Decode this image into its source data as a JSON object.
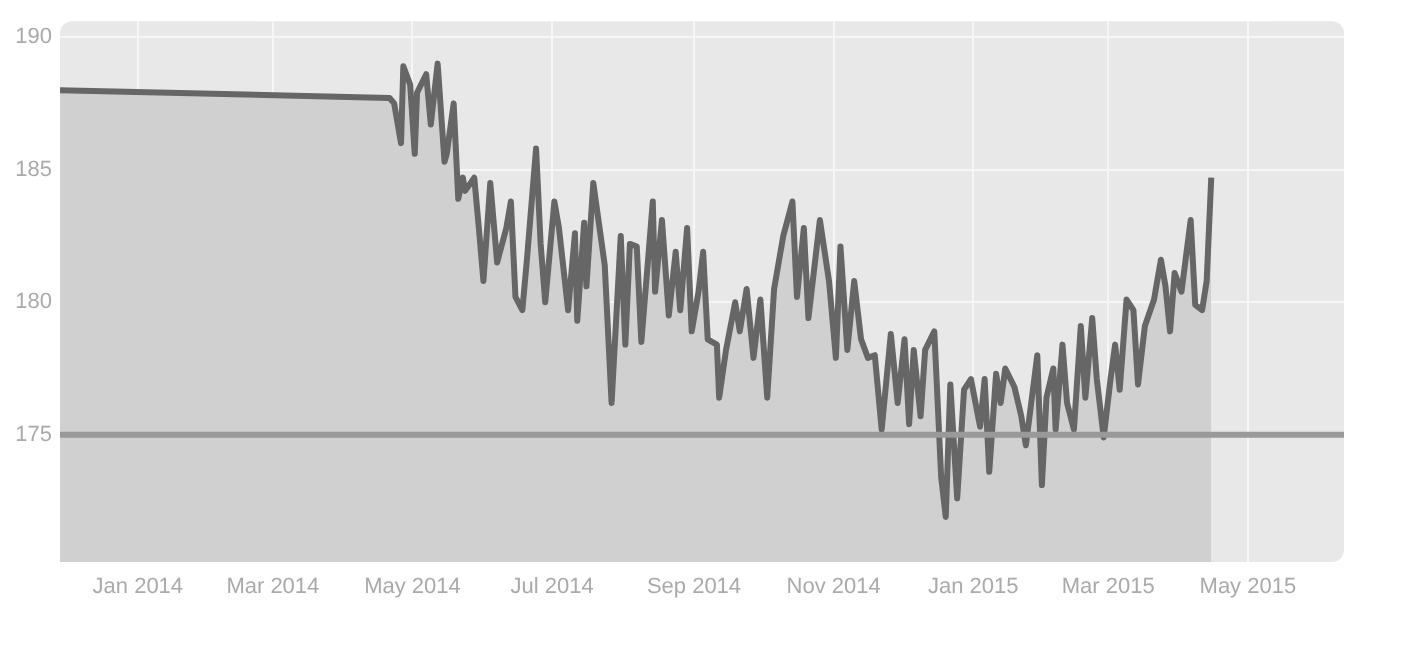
{
  "chart_data": {
    "type": "area",
    "x": [
      "2013-11-28",
      "2014-04-21",
      "2014-04-23",
      "2014-04-26",
      "2014-04-27",
      "2014-04-30",
      "2014-05-02",
      "2014-05-03",
      "2014-05-07",
      "2014-05-09",
      "2014-05-12",
      "2014-05-15",
      "2014-05-16",
      "2014-05-19",
      "2014-05-21",
      "2014-05-23",
      "2014-05-24",
      "2014-05-28",
      "2014-05-30",
      "2014-06-01",
      "2014-06-04",
      "2014-06-07",
      "2014-06-11",
      "2014-06-13",
      "2014-06-15",
      "2014-06-18",
      "2014-06-20",
      "2014-06-24",
      "2014-06-26",
      "2014-06-28",
      "2014-07-02",
      "2014-07-04",
      "2014-07-08",
      "2014-07-11",
      "2014-07-12",
      "2014-07-15",
      "2014-07-16",
      "2014-07-19",
      "2014-07-24",
      "2014-07-27",
      "2014-07-31",
      "2014-08-02",
      "2014-08-04",
      "2014-08-07",
      "2014-08-09",
      "2014-08-14",
      "2014-08-15",
      "2014-08-18",
      "2014-08-21",
      "2014-08-24",
      "2014-08-26",
      "2014-08-29",
      "2014-08-31",
      "2014-09-03",
      "2014-09-05",
      "2014-09-07",
      "2014-09-11",
      "2014-09-12",
      "2014-09-15",
      "2014-09-19",
      "2014-09-21",
      "2014-09-24",
      "2014-09-27",
      "2014-09-30",
      "2014-10-03",
      "2014-10-06",
      "2014-10-10",
      "2014-10-14",
      "2014-10-16",
      "2014-10-19",
      "2014-10-21",
      "2014-10-26",
      "2014-10-30",
      "2014-11-02",
      "2014-11-04",
      "2014-11-07",
      "2014-11-10",
      "2014-11-13",
      "2014-11-16",
      "2014-11-19",
      "2014-11-22",
      "2014-11-26",
      "2014-11-29",
      "2014-12-02",
      "2014-12-04",
      "2014-12-06",
      "2014-12-09",
      "2014-12-11",
      "2014-12-15",
      "2014-12-18",
      "2014-12-20",
      "2014-12-22",
      "2014-12-25",
      "2014-12-28",
      "2014-12-31",
      "2015-01-04",
      "2015-01-06",
      "2015-01-08",
      "2015-01-11",
      "2015-01-13",
      "2015-01-15",
      "2015-01-19",
      "2015-01-22",
      "2015-01-24",
      "2015-01-29",
      "2015-01-31",
      "2015-02-02",
      "2015-02-05",
      "2015-02-06",
      "2015-02-09",
      "2015-02-11",
      "2015-02-14",
      "2015-02-17",
      "2015-02-19",
      "2015-02-22",
      "2015-02-24",
      "2015-02-27",
      "2015-03-02",
      "2015-03-04",
      "2015-03-06",
      "2015-03-09",
      "2015-03-12",
      "2015-03-14",
      "2015-03-17",
      "2015-03-21",
      "2015-03-24",
      "2015-03-26",
      "2015-03-28",
      "2015-03-30",
      "2015-04-02",
      "2015-04-06",
      "2015-04-08",
      "2015-04-11",
      "2015-04-13",
      "2015-04-15"
    ],
    "series": [
      {
        "color": "#666666",
        "values": [
          188.0,
          187.7,
          187.5,
          186.0,
          188.9,
          188.2,
          185.6,
          187.9,
          188.6,
          186.7,
          189.0,
          185.3,
          185.6,
          187.5,
          183.9,
          184.7,
          184.2,
          184.7,
          182.8,
          180.8,
          184.5,
          181.5,
          182.8,
          183.8,
          180.2,
          179.7,
          181.6,
          185.8,
          182.2,
          180.0,
          183.8,
          182.8,
          179.7,
          182.6,
          179.3,
          183.0,
          180.6,
          184.5,
          181.4,
          176.2,
          182.5,
          178.4,
          182.2,
          182.1,
          178.5,
          183.8,
          180.4,
          183.1,
          179.5,
          181.9,
          179.7,
          182.8,
          178.9,
          180.4,
          181.9,
          178.6,
          178.4,
          176.4,
          178.2,
          180.0,
          178.9,
          180.5,
          177.9,
          180.1,
          176.4,
          180.5,
          182.5,
          183.8,
          180.2,
          182.8,
          179.4,
          183.1,
          180.8,
          177.9,
          182.1,
          178.2,
          180.8,
          178.6,
          177.9,
          178.0,
          175.2,
          178.8,
          176.2,
          178.6,
          175.4,
          178.2,
          175.7,
          178.2,
          178.9,
          173.4,
          171.9,
          176.9,
          172.6,
          176.7,
          177.1,
          175.3,
          177.1,
          173.6,
          177.3,
          176.2,
          177.5,
          176.8,
          175.7,
          174.6,
          178.0,
          173.1,
          176.4,
          177.5,
          175.2,
          178.4,
          176.2,
          175.2,
          179.1,
          176.4,
          179.4,
          177.1,
          174.9,
          177.1,
          178.4,
          176.7,
          180.1,
          179.7,
          176.9,
          179.1,
          180.1,
          181.6,
          180.6,
          178.9,
          181.1,
          180.4,
          183.1,
          179.9,
          179.7,
          180.8,
          184.7
        ]
      }
    ],
    "xlim": [
      "2013-11-28",
      "2015-06-12"
    ],
    "xticks": [
      {
        "value": "2014-01-01",
        "label": "Jan 2014"
      },
      {
        "value": "2014-03-01",
        "label": "Mar 2014"
      },
      {
        "value": "2014-05-01",
        "label": "May 2014"
      },
      {
        "value": "2014-07-01",
        "label": "Jul 2014"
      },
      {
        "value": "2014-09-01",
        "label": "Sep 2014"
      },
      {
        "value": "2014-11-01",
        "label": "Nov 2014"
      },
      {
        "value": "2015-01-01",
        "label": "Jan 2015"
      },
      {
        "value": "2015-03-01",
        "label": "Mar 2015"
      },
      {
        "value": "2015-05-01",
        "label": "May 2015"
      }
    ],
    "ylim": [
      170.2,
      190.6
    ],
    "yticks": [
      175,
      180,
      185,
      190
    ],
    "ref_lines": [
      {
        "axis": "y",
        "value": 175,
        "color": "#999999"
      }
    ],
    "grid": true,
    "legend": false
  }
}
